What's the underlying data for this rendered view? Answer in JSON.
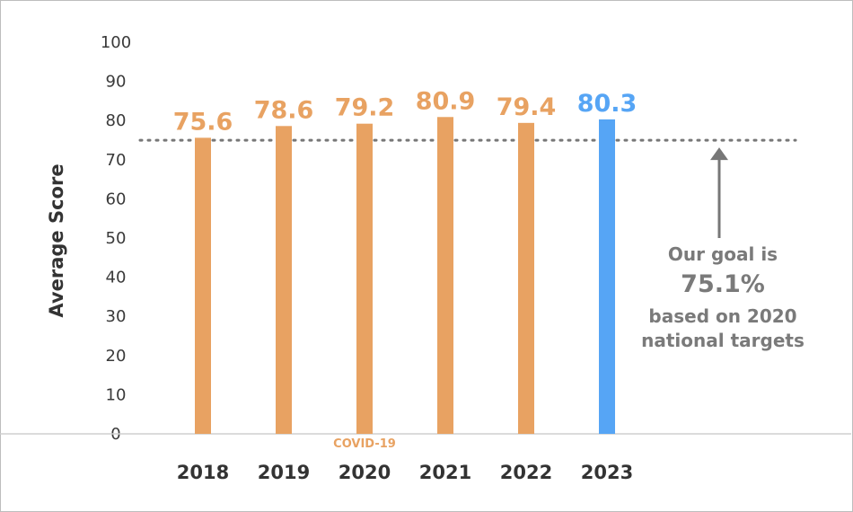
{
  "chart_data": {
    "type": "bar",
    "ylabel": "Average Score",
    "ylim": [
      0,
      100
    ],
    "yticks": [
      0,
      10,
      20,
      30,
      40,
      50,
      60,
      70,
      80,
      90,
      100
    ],
    "categories": [
      "2018",
      "2019",
      "2020",
      "2021",
      "2022",
      "2023"
    ],
    "values": [
      75.6,
      78.6,
      79.2,
      80.9,
      79.4,
      80.3
    ],
    "value_labels": [
      "75.6",
      "78.6",
      "79.2",
      "80.9",
      "79.4",
      "80.3"
    ],
    "bar_colors": [
      "#e8a262",
      "#e8a262",
      "#e8a262",
      "#e8a262",
      "#e8a262",
      "#56a5f5"
    ],
    "goal_line": 75.1,
    "annotations": {
      "covid": "COVID-19",
      "goal_line1": "Our goal is",
      "goal_value": "75.1%",
      "goal_line3": "based on 2020",
      "goal_line4": "national targets"
    },
    "grid": false
  }
}
